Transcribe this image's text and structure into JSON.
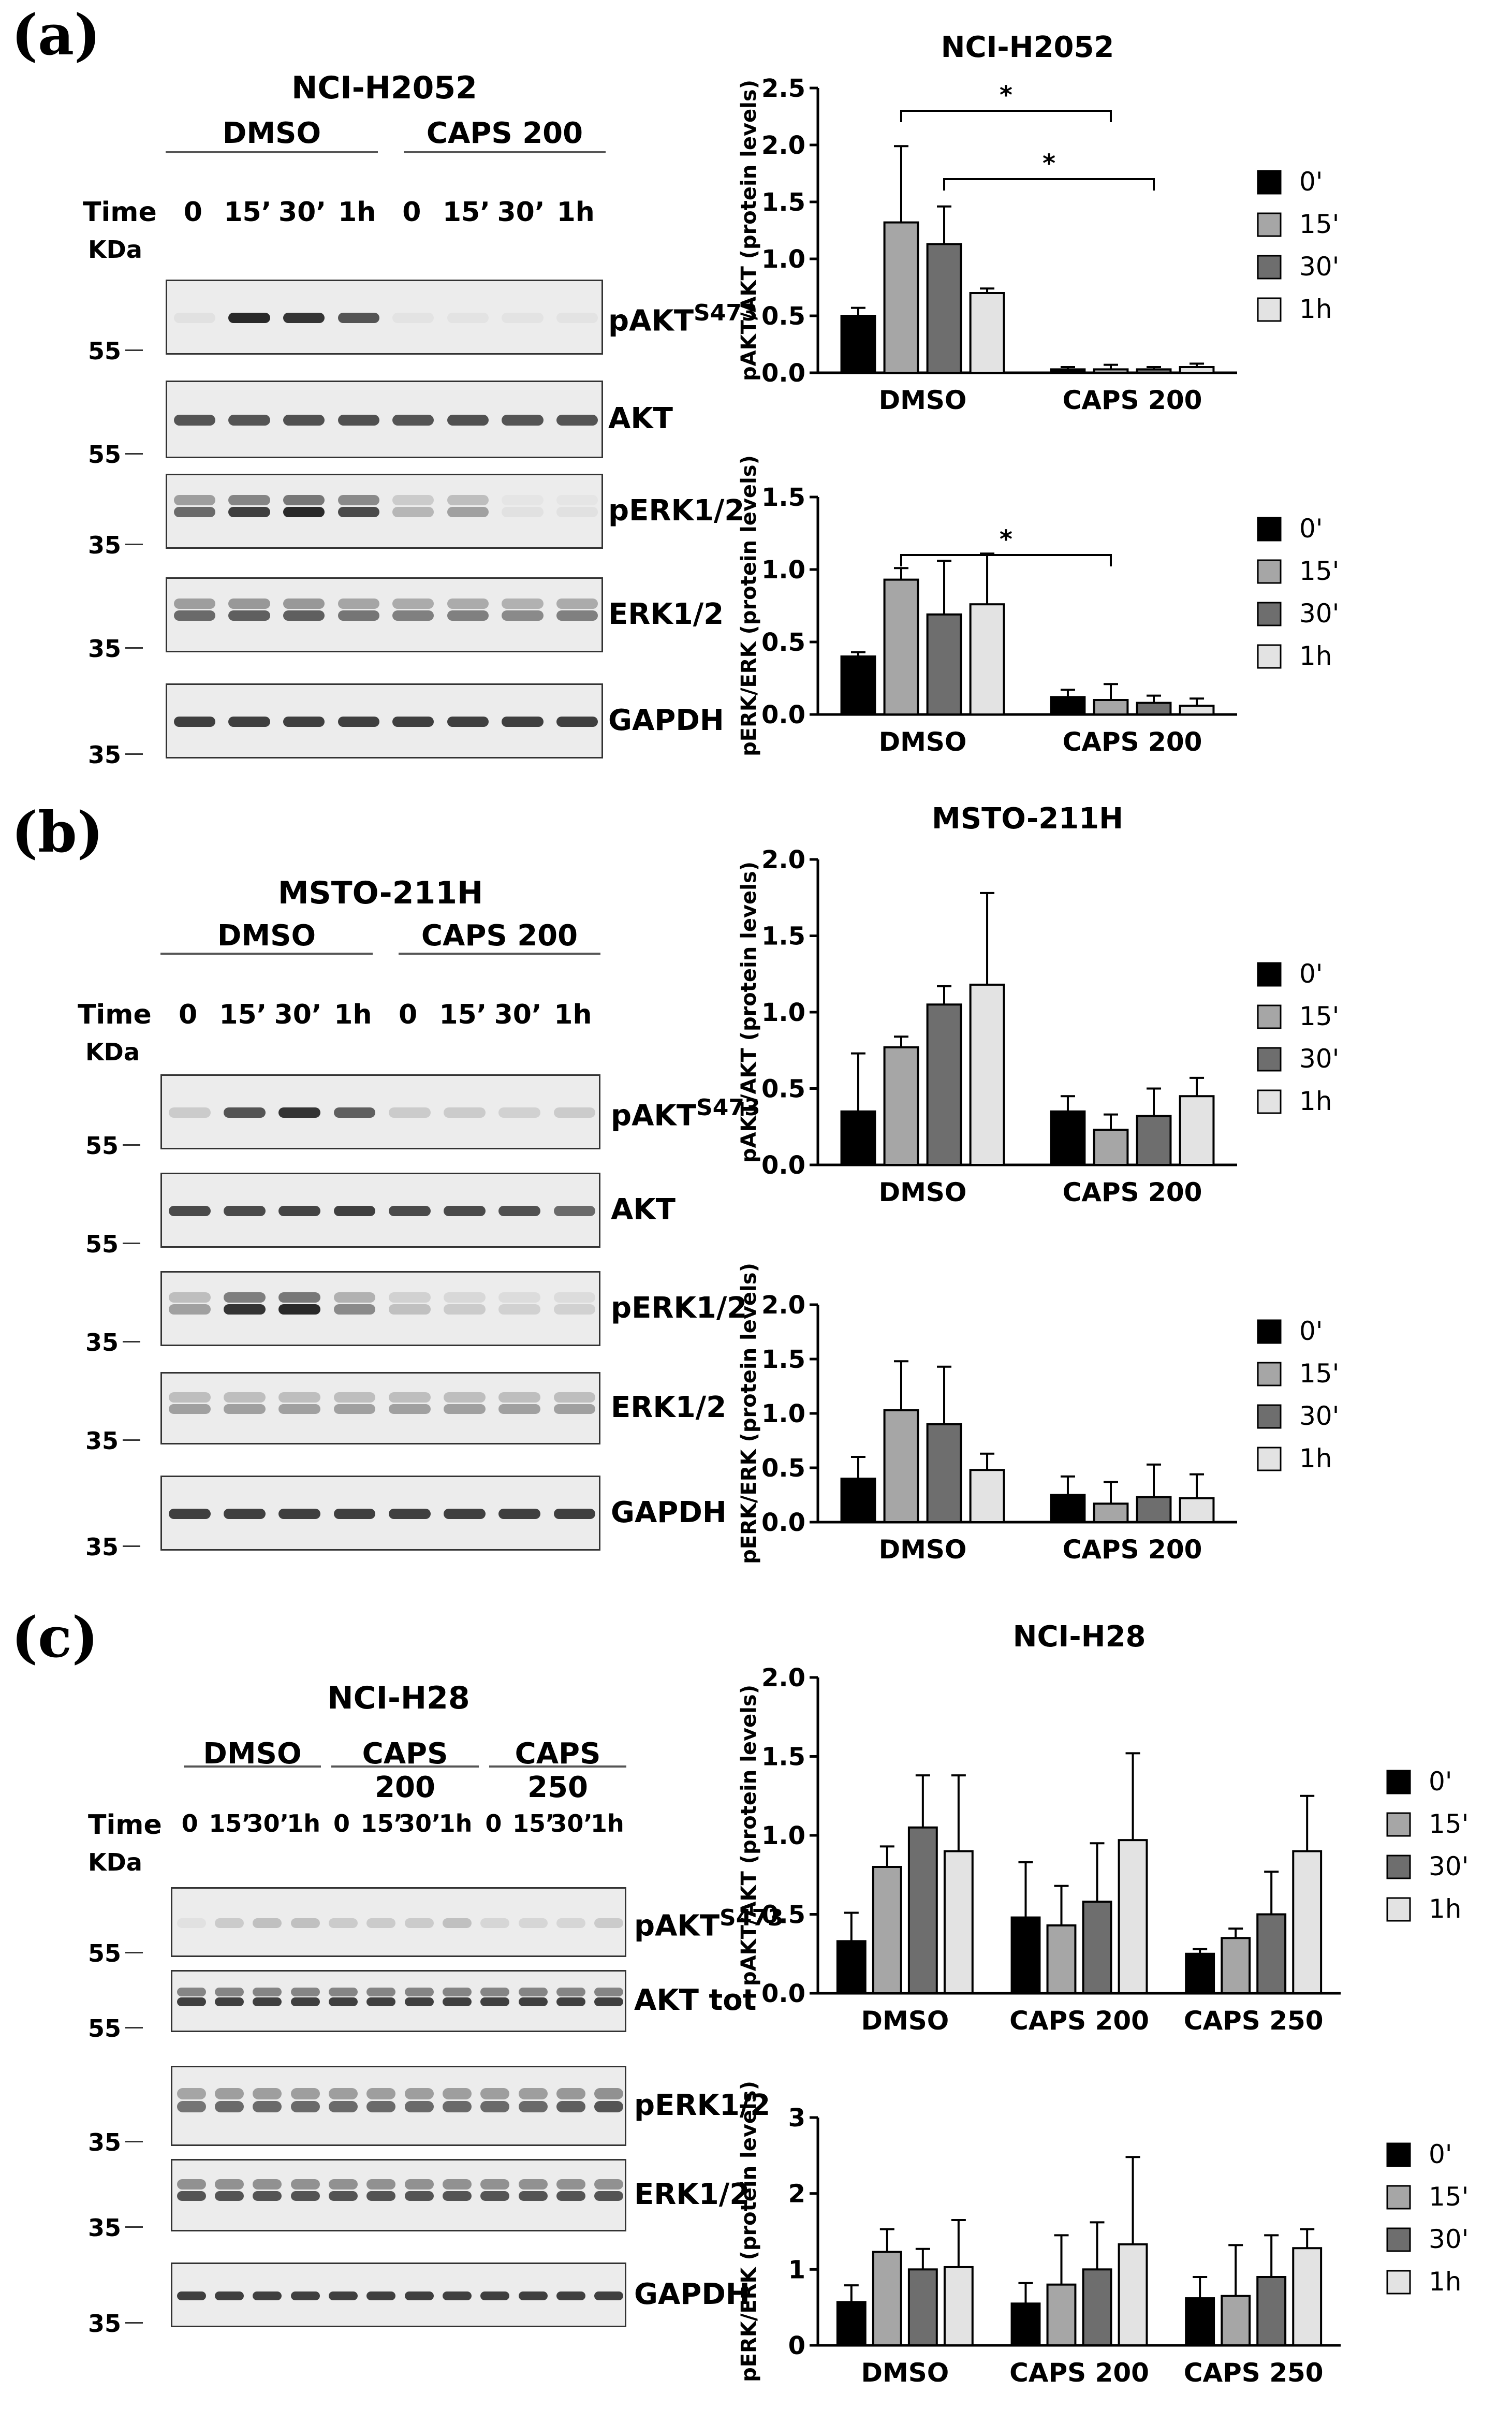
{
  "figure": {
    "colors": {
      "t0": "#000000",
      "t15": "#a6a6a6",
      "t30": "#6e6e6e",
      "t1h": "#e3e3e3",
      "band_dark": "#1a1a1a",
      "axis": "#000000",
      "blot_bg": "#ececec"
    },
    "panels": [
      {
        "label": "(a)",
        "cell_line": "NCI-H2052",
        "conditions": [
          "DMSO",
          "CAPS 200"
        ],
        "time_prefix": "Time",
        "time_points": [
          "0",
          "15’",
          "30’",
          "1h",
          "0",
          "15’",
          "30’",
          "1h"
        ],
        "kda_label": "KDa",
        "blots": [
          {
            "name": "pAKT",
            "sup": "S473",
            "marker": "55",
            "intensities": [
              0.05,
              0.9,
              0.85,
              0.7,
              0.02,
              0.02,
              0.02,
              0.02
            ]
          },
          {
            "name": "AKT",
            "sup": "",
            "marker": "55",
            "intensities": [
              0.7,
              0.7,
              0.72,
              0.72,
              0.7,
              0.72,
              0.7,
              0.7
            ]
          },
          {
            "name": "pERK1/2",
            "sup": "",
            "marker": "35",
            "intensities": [
              0.6,
              0.8,
              0.9,
              0.75,
              0.25,
              0.35,
              0.05,
              0.05
            ]
          },
          {
            "name": "ERK1/2",
            "sup": "",
            "marker": "35",
            "intensities": [
              0.6,
              0.65,
              0.65,
              0.55,
              0.5,
              0.5,
              0.45,
              0.5
            ]
          },
          {
            "name": "GAPDH",
            "sup": "",
            "marker": "35",
            "intensities": [
              0.8,
              0.8,
              0.8,
              0.8,
              0.8,
              0.8,
              0.8,
              0.8
            ]
          }
        ]
      },
      {
        "label": "(b)",
        "cell_line": "MSTO-211H",
        "conditions": [
          "DMSO",
          "CAPS 200"
        ],
        "time_prefix": "Time",
        "time_points": [
          "0",
          "15’",
          "30’",
          "1h",
          "0",
          "15’",
          "30’",
          "1h"
        ],
        "kda_label": "KDa",
        "blots": [
          {
            "name": "pAKT",
            "sup": "S473",
            "marker": "55",
            "intensities": [
              0.15,
              0.7,
              0.85,
              0.65,
              0.15,
              0.15,
              0.12,
              0.15
            ]
          },
          {
            "name": "AKT",
            "sup": "",
            "marker": "55",
            "intensities": [
              0.75,
              0.75,
              0.78,
              0.8,
              0.75,
              0.75,
              0.72,
              0.6
            ]
          },
          {
            "name": "pERK1/2",
            "sup": "",
            "marker": "35",
            "intensities": [
              0.35,
              0.85,
              0.9,
              0.45,
              0.2,
              0.15,
              0.12,
              0.12
            ]
          },
          {
            "name": "ERK1/2",
            "sup": "",
            "marker": "35",
            "intensities": [
              0.35,
              0.35,
              0.35,
              0.35,
              0.35,
              0.35,
              0.35,
              0.35
            ]
          },
          {
            "name": "GAPDH",
            "sup": "",
            "marker": "35",
            "intensities": [
              0.8,
              0.8,
              0.8,
              0.8,
              0.8,
              0.8,
              0.8,
              0.8
            ]
          }
        ]
      },
      {
        "label": "(c)",
        "cell_line": "NCI-H28",
        "conditions": [
          "DMSO",
          "CAPS 200",
          "CAPS 250"
        ],
        "time_prefix": "Time",
        "time_points": [
          "0",
          "15’",
          "30’",
          "1h",
          "0",
          "15’",
          "30’",
          "1h",
          "0",
          "15’",
          "30’",
          "1h"
        ],
        "kda_label": "KDa",
        "blots": [
          {
            "name": "pAKT",
            "sup": "S473",
            "marker": "55",
            "intensities": [
              0.05,
              0.15,
              0.2,
              0.2,
              0.15,
              0.15,
              0.15,
              0.2,
              0.1,
              0.1,
              0.1,
              0.15
            ]
          },
          {
            "name": "AKT tot",
            "sup": "",
            "marker": "55",
            "intensities": [
              0.8,
              0.8,
              0.8,
              0.8,
              0.8,
              0.8,
              0.8,
              0.8,
              0.8,
              0.8,
              0.8,
              0.8
            ]
          },
          {
            "name": "pERK1/2",
            "sup": "",
            "marker": "35",
            "intensities": [
              0.55,
              0.6,
              0.6,
              0.6,
              0.6,
              0.6,
              0.6,
              0.6,
              0.6,
              0.6,
              0.65,
              0.7
            ]
          },
          {
            "name": "ERK1/2",
            "sup": "",
            "marker": "35",
            "intensities": [
              0.7,
              0.7,
              0.7,
              0.7,
              0.7,
              0.7,
              0.7,
              0.7,
              0.7,
              0.7,
              0.7,
              0.7
            ]
          },
          {
            "name": "GAPDH",
            "sup": "",
            "marker": "35",
            "intensities": [
              0.8,
              0.8,
              0.8,
              0.8,
              0.8,
              0.8,
              0.8,
              0.8,
              0.8,
              0.8,
              0.8,
              0.8
            ]
          }
        ]
      }
    ]
  },
  "chart_data": [
    {
      "type": "bar",
      "title": "NCI-H2052",
      "ylabel": "pAKT/AKT (protein levels)",
      "categories": [
        "DMSO",
        "CAPS 200"
      ],
      "ylim": [
        0,
        2.5
      ],
      "yticks": [
        "0.0",
        "0.5",
        "1.0",
        "1.5",
        "2.0",
        "2.5"
      ],
      "series": [
        {
          "name": "0'",
          "values": [
            0.5,
            0.03
          ],
          "errors": [
            0.07,
            0.02
          ]
        },
        {
          "name": "15'",
          "values": [
            1.32,
            0.03
          ],
          "errors": [
            0.67,
            0.04
          ]
        },
        {
          "name": "30'",
          "values": [
            1.13,
            0.03
          ],
          "errors": [
            0.33,
            0.02
          ]
        },
        {
          "name": "1h",
          "values": [
            0.7,
            0.05
          ],
          "errors": [
            0.04,
            0.03
          ]
        }
      ],
      "significance": [
        {
          "label": "*",
          "from": {
            "category": 0,
            "series": 1
          },
          "to": {
            "category": 1,
            "series": 1
          },
          "y": 2.3
        },
        {
          "label": "*",
          "from": {
            "category": 0,
            "series": 2
          },
          "to": {
            "category": 1,
            "series": 2
          },
          "y": 1.7
        }
      ]
    },
    {
      "type": "bar",
      "title": "",
      "ylabel": "pERK/ERK (protein levels)",
      "categories": [
        "DMSO",
        "CAPS 200"
      ],
      "ylim": [
        0,
        1.5
      ],
      "yticks": [
        "0.0",
        "0.5",
        "1.0",
        "1.5"
      ],
      "series": [
        {
          "name": "0'",
          "values": [
            0.4,
            0.12
          ],
          "errors": [
            0.03,
            0.05
          ]
        },
        {
          "name": "15'",
          "values": [
            0.93,
            0.1
          ],
          "errors": [
            0.08,
            0.11
          ]
        },
        {
          "name": "30'",
          "values": [
            0.69,
            0.08
          ],
          "errors": [
            0.37,
            0.05
          ]
        },
        {
          "name": "1h",
          "values": [
            0.76,
            0.06
          ],
          "errors": [
            0.35,
            0.05
          ]
        }
      ],
      "significance": [
        {
          "label": "*",
          "from": {
            "category": 0,
            "series": 1
          },
          "to": {
            "category": 1,
            "series": 1
          },
          "y": 1.1
        }
      ]
    },
    {
      "type": "bar",
      "title": "MSTO-211H",
      "ylabel": "pAKT/AKT (protein levels)",
      "categories": [
        "DMSO",
        "CAPS 200"
      ],
      "ylim": [
        0,
        2.0
      ],
      "yticks": [
        "0.0",
        "0.5",
        "1.0",
        "1.5",
        "2.0"
      ],
      "series": [
        {
          "name": "0'",
          "values": [
            0.35,
            0.35
          ],
          "errors": [
            0.38,
            0.1
          ]
        },
        {
          "name": "15'",
          "values": [
            0.77,
            0.23
          ],
          "errors": [
            0.07,
            0.1
          ]
        },
        {
          "name": "30'",
          "values": [
            1.05,
            0.32
          ],
          "errors": [
            0.12,
            0.18
          ]
        },
        {
          "name": "1h",
          "values": [
            1.18,
            0.45
          ],
          "errors": [
            0.6,
            0.12
          ]
        }
      ],
      "significance": []
    },
    {
      "type": "bar",
      "title": "",
      "ylabel": "pERK/ERK (protein levels)",
      "categories": [
        "DMSO",
        "CAPS 200"
      ],
      "ylim": [
        0,
        2.0
      ],
      "yticks": [
        "0.0",
        "0.5",
        "1.0",
        "1.5",
        "2.0"
      ],
      "series": [
        {
          "name": "0'",
          "values": [
            0.4,
            0.25
          ],
          "errors": [
            0.2,
            0.17
          ]
        },
        {
          "name": "15'",
          "values": [
            1.03,
            0.17
          ],
          "errors": [
            0.45,
            0.2
          ]
        },
        {
          "name": "30'",
          "values": [
            0.9,
            0.23
          ],
          "errors": [
            0.53,
            0.3
          ]
        },
        {
          "name": "1h",
          "values": [
            0.48,
            0.22
          ],
          "errors": [
            0.15,
            0.22
          ]
        }
      ],
      "significance": []
    },
    {
      "type": "bar",
      "title": "NCI-H28",
      "ylabel": "pAKT/AKT (protein levels)",
      "categories": [
        "DMSO",
        "CAPS 200",
        "CAPS 250"
      ],
      "ylim": [
        0,
        2.0
      ],
      "yticks": [
        "0.0",
        "0.5",
        "1.0",
        "1.5",
        "2.0"
      ],
      "series": [
        {
          "name": "0'",
          "values": [
            0.33,
            0.48,
            0.25
          ],
          "errors": [
            0.18,
            0.35,
            0.03
          ]
        },
        {
          "name": "15'",
          "values": [
            0.8,
            0.43,
            0.35
          ],
          "errors": [
            0.13,
            0.25,
            0.06
          ]
        },
        {
          "name": "30'",
          "values": [
            1.05,
            0.58,
            0.5
          ],
          "errors": [
            0.33,
            0.37,
            0.27
          ]
        },
        {
          "name": "1h",
          "values": [
            0.9,
            0.97,
            0.9
          ],
          "errors": [
            0.48,
            0.55,
            0.35
          ]
        }
      ],
      "significance": []
    },
    {
      "type": "bar",
      "title": "",
      "ylabel": "pERK/ERK (protein levels)",
      "categories": [
        "DMSO",
        "CAPS 200",
        "CAPS 250"
      ],
      "ylim": [
        0,
        3
      ],
      "yticks": [
        "0",
        "1",
        "2",
        "3"
      ],
      "series": [
        {
          "name": "0'",
          "values": [
            0.57,
            0.55,
            0.62
          ],
          "errors": [
            0.22,
            0.27,
            0.28
          ]
        },
        {
          "name": "15'",
          "values": [
            1.23,
            0.8,
            0.65
          ],
          "errors": [
            0.3,
            0.65,
            0.67
          ]
        },
        {
          "name": "30'",
          "values": [
            1.0,
            1.0,
            0.9
          ],
          "errors": [
            0.27,
            0.62,
            0.55
          ]
        },
        {
          "name": "1h",
          "values": [
            1.03,
            1.33,
            1.28
          ],
          "errors": [
            0.62,
            1.15,
            0.25
          ]
        }
      ],
      "significance": []
    }
  ]
}
